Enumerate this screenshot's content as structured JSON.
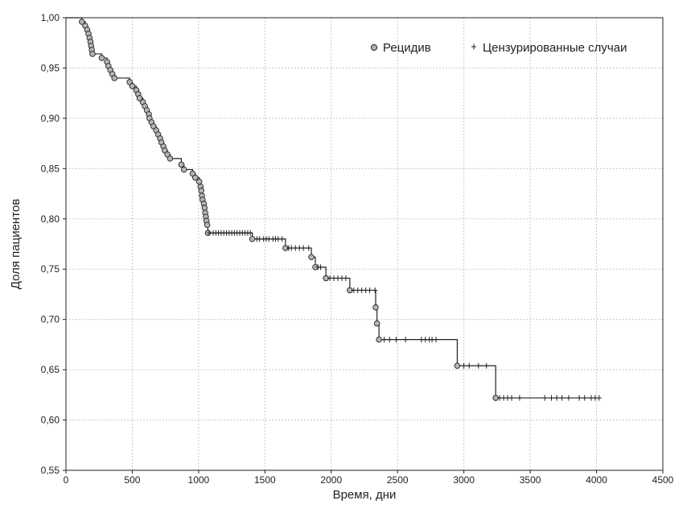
{
  "chart_data": {
    "type": "line",
    "title": "",
    "xlabel": "Время, дни",
    "ylabel": "Доля пациентов",
    "xlim": [
      0,
      4500
    ],
    "ylim": [
      0.55,
      1.0
    ],
    "x_ticks": [
      "0",
      "500",
      "1000",
      "1500",
      "2000",
      "2500",
      "3000",
      "3500",
      "4000",
      "4500"
    ],
    "y_ticks": [
      "0,55",
      "0,60",
      "0,65",
      "0,70",
      "0,75",
      "0,80",
      "0,85",
      "0,90",
      "0,95",
      "1,00"
    ],
    "grid": true,
    "legend_position": "top-right",
    "legend": {
      "relapse": "Рецидив",
      "censored": "Цензурированные случаи"
    },
    "series": [
      {
        "name": "Рецидив",
        "marker": "circle",
        "step_points": [
          [
            0,
            1.0
          ],
          [
            120,
            0.996
          ],
          [
            145,
            0.992
          ],
          [
            160,
            0.988
          ],
          [
            170,
            0.984
          ],
          [
            178,
            0.98
          ],
          [
            185,
            0.976
          ],
          [
            190,
            0.972
          ],
          [
            195,
            0.968
          ],
          [
            200,
            0.964
          ],
          [
            270,
            0.96
          ],
          [
            310,
            0.956
          ],
          [
            320,
            0.952
          ],
          [
            335,
            0.948
          ],
          [
            350,
            0.944
          ],
          [
            365,
            0.94
          ],
          [
            480,
            0.936
          ],
          [
            500,
            0.932
          ],
          [
            530,
            0.928
          ],
          [
            545,
            0.924
          ],
          [
            555,
            0.92
          ],
          [
            580,
            0.916
          ],
          [
            595,
            0.912
          ],
          [
            610,
            0.908
          ],
          [
            625,
            0.904
          ],
          [
            630,
            0.9
          ],
          [
            645,
            0.896
          ],
          [
            660,
            0.892
          ],
          [
            680,
            0.888
          ],
          [
            695,
            0.884
          ],
          [
            710,
            0.88
          ],
          [
            720,
            0.876
          ],
          [
            735,
            0.872
          ],
          [
            745,
            0.868
          ],
          [
            765,
            0.864
          ],
          [
            785,
            0.86
          ],
          [
            870,
            0.854
          ],
          [
            890,
            0.849
          ],
          [
            955,
            0.845
          ],
          [
            975,
            0.841
          ],
          [
            1005,
            0.837
          ],
          [
            1015,
            0.832
          ],
          [
            1020,
            0.828
          ],
          [
            1025,
            0.823
          ],
          [
            1030,
            0.819
          ],
          [
            1040,
            0.815
          ],
          [
            1045,
            0.811
          ],
          [
            1050,
            0.806
          ],
          [
            1055,
            0.802
          ],
          [
            1060,
            0.798
          ],
          [
            1065,
            0.794
          ],
          [
            1070,
            0.786
          ],
          [
            1405,
            0.78
          ],
          [
            1655,
            0.771
          ],
          [
            1850,
            0.762
          ],
          [
            1880,
            0.752
          ],
          [
            1960,
            0.741
          ],
          [
            2140,
            0.729
          ],
          [
            2335,
            0.712
          ],
          [
            2345,
            0.696
          ],
          [
            2360,
            0.68
          ],
          [
            2950,
            0.654
          ],
          [
            3240,
            0.622
          ]
        ],
        "end_x": 4020
      },
      {
        "name": "Цензурированные случаи",
        "marker": "plus",
        "points": [
          [
            1080,
            0.786
          ],
          [
            1110,
            0.786
          ],
          [
            1130,
            0.786
          ],
          [
            1150,
            0.786
          ],
          [
            1170,
            0.786
          ],
          [
            1190,
            0.786
          ],
          [
            1210,
            0.786
          ],
          [
            1230,
            0.786
          ],
          [
            1250,
            0.786
          ],
          [
            1270,
            0.786
          ],
          [
            1290,
            0.786
          ],
          [
            1310,
            0.786
          ],
          [
            1330,
            0.786
          ],
          [
            1350,
            0.786
          ],
          [
            1370,
            0.786
          ],
          [
            1390,
            0.786
          ],
          [
            1440,
            0.78
          ],
          [
            1460,
            0.78
          ],
          [
            1490,
            0.78
          ],
          [
            1510,
            0.78
          ],
          [
            1530,
            0.78
          ],
          [
            1560,
            0.78
          ],
          [
            1580,
            0.78
          ],
          [
            1600,
            0.78
          ],
          [
            1630,
            0.78
          ],
          [
            1680,
            0.771
          ],
          [
            1700,
            0.771
          ],
          [
            1730,
            0.771
          ],
          [
            1760,
            0.771
          ],
          [
            1790,
            0.771
          ],
          [
            1830,
            0.771
          ],
          [
            1900,
            0.752
          ],
          [
            1920,
            0.752
          ],
          [
            1990,
            0.741
          ],
          [
            2020,
            0.741
          ],
          [
            2050,
            0.741
          ],
          [
            2080,
            0.741
          ],
          [
            2110,
            0.741
          ],
          [
            2170,
            0.729
          ],
          [
            2200,
            0.729
          ],
          [
            2230,
            0.729
          ],
          [
            2260,
            0.729
          ],
          [
            2290,
            0.729
          ],
          [
            2330,
            0.729
          ],
          [
            2400,
            0.68
          ],
          [
            2440,
            0.68
          ],
          [
            2490,
            0.68
          ],
          [
            2560,
            0.68
          ],
          [
            2680,
            0.68
          ],
          [
            2710,
            0.68
          ],
          [
            2740,
            0.68
          ],
          [
            2760,
            0.68
          ],
          [
            2790,
            0.68
          ],
          [
            3000,
            0.654
          ],
          [
            3040,
            0.654
          ],
          [
            3110,
            0.654
          ],
          [
            3170,
            0.654
          ],
          [
            3270,
            0.622
          ],
          [
            3300,
            0.622
          ],
          [
            3330,
            0.622
          ],
          [
            3360,
            0.622
          ],
          [
            3420,
            0.622
          ],
          [
            3610,
            0.622
          ],
          [
            3660,
            0.622
          ],
          [
            3700,
            0.622
          ],
          [
            3740,
            0.622
          ],
          [
            3790,
            0.622
          ],
          [
            3870,
            0.622
          ],
          [
            3910,
            0.622
          ],
          [
            3960,
            0.622
          ],
          [
            3990,
            0.622
          ],
          [
            4020,
            0.622
          ]
        ]
      }
    ]
  }
}
